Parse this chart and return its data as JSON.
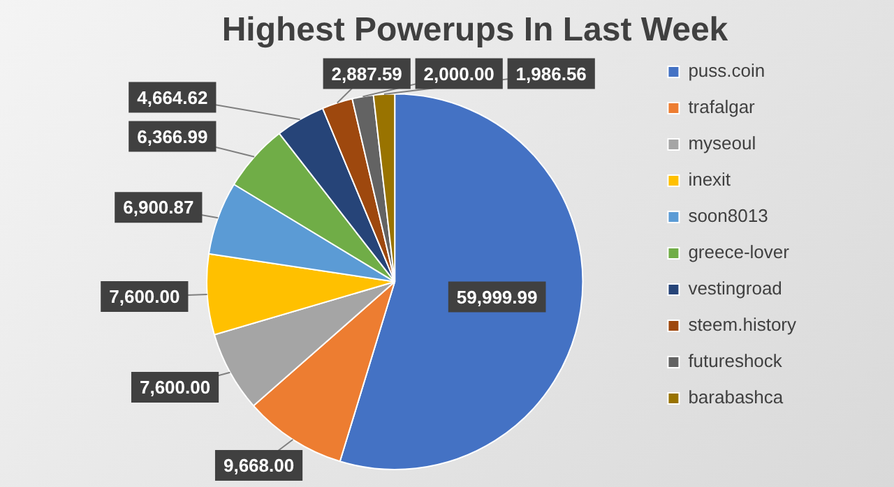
{
  "chart_data": {
    "type": "pie",
    "title": "Highest Powerups In Last Week",
    "categories": [
      "puss.coin",
      "trafalgar",
      "myseoul",
      "inexit",
      "soon8013",
      "greece-lover",
      "vestingroad",
      "steem.history",
      "futureshock",
      "barabashca"
    ],
    "values": [
      59999.99,
      9668.0,
      7600.0,
      7600.0,
      6900.87,
      6366.99,
      4664.62,
      2887.59,
      2000,
      1986.56
    ],
    "colors": [
      "#4472c4",
      "#ed7d31",
      "#a5a5a5",
      "#ffc000",
      "#5b9bd5",
      "#70ad47",
      "#264478",
      "#9e480e",
      "#636363",
      "#997300"
    ],
    "value_labels": [
      "59,999.99",
      "9,668.00",
      "7,600.00",
      "7,600.00",
      "6,900.87",
      "6,366.99",
      "4,664.62",
      "2,887.59",
      "2,000.00",
      "1,986.56"
    ],
    "legend": "right"
  }
}
